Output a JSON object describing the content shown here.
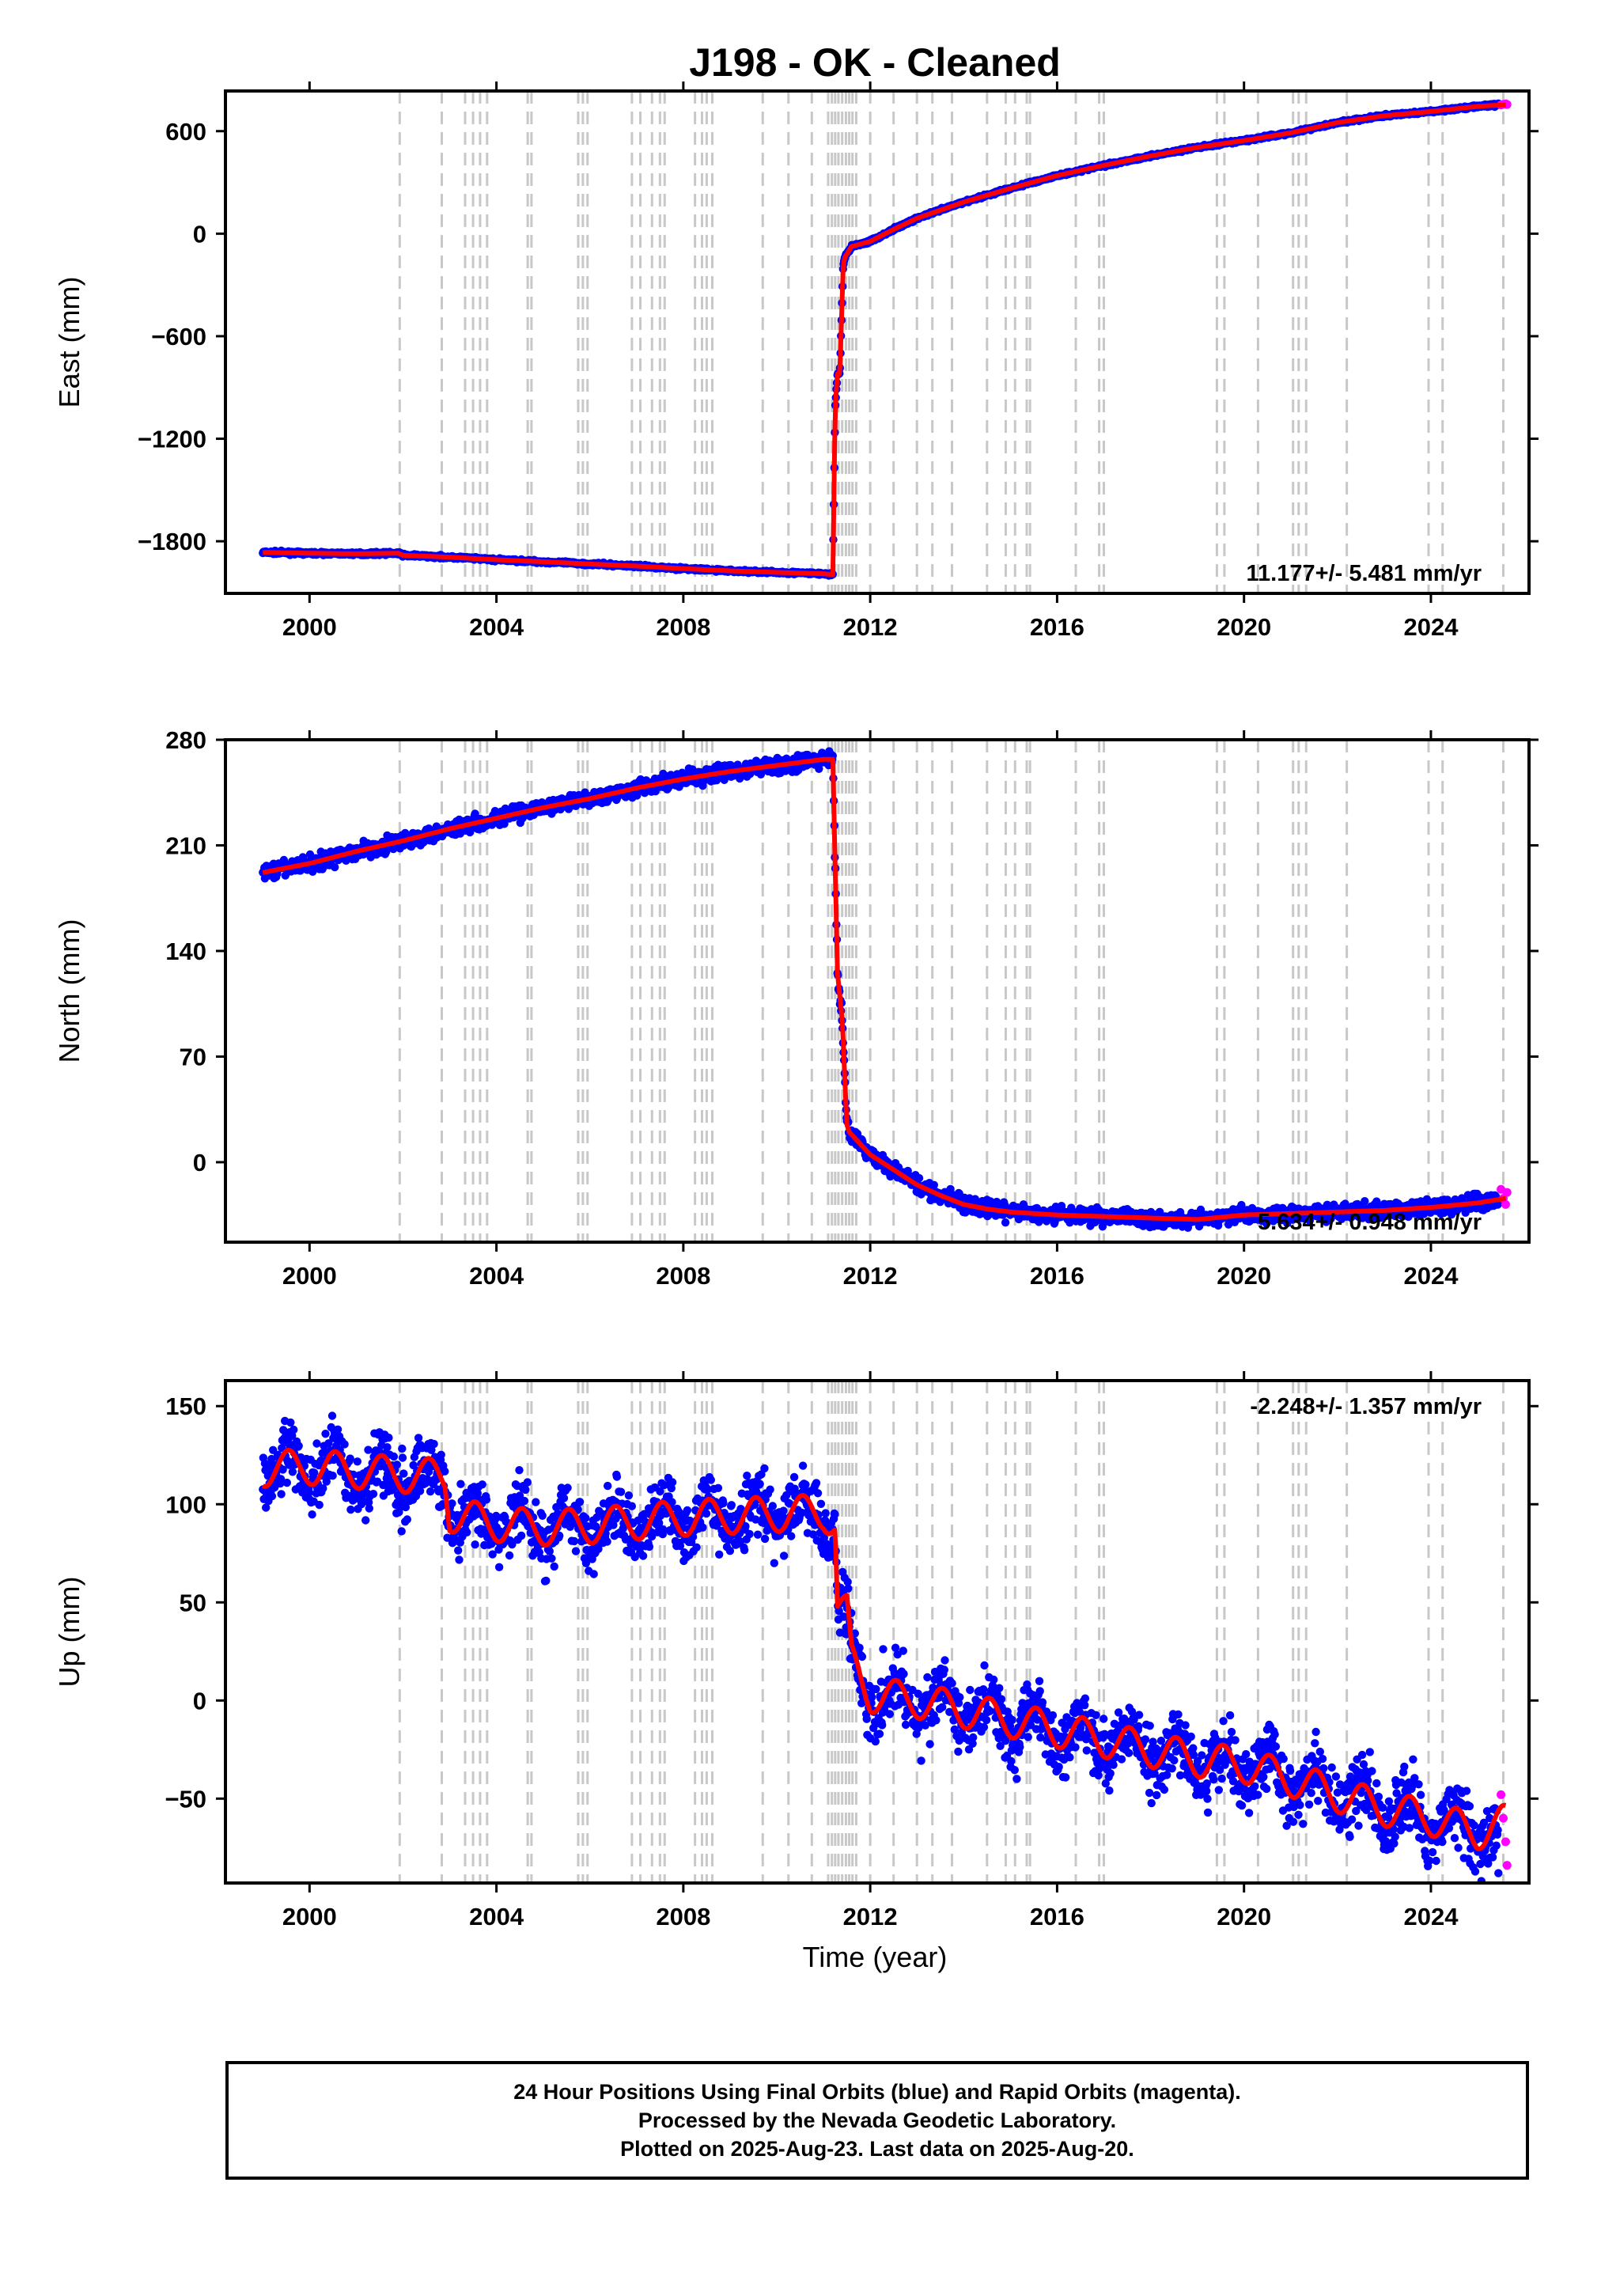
{
  "title": "J198  - OK - Cleaned",
  "xlabel": "Time (year)",
  "footer": {
    "line1": "24 Hour Positions Using Final Orbits (blue) and Rapid Orbits (magenta).",
    "line2": "Processed by the Nevada Geodetic Laboratory.",
    "line3": "Plotted on 2025-Aug-23. Last data on 2025-Aug-20."
  },
  "colors": {
    "final_orbits": "#0000ff",
    "rapid_orbits": "#ff00ff",
    "model": "#ff0000",
    "event_lines": "#c8c8c8",
    "frame": "#000000"
  },
  "chart_data": [
    {
      "type": "scatter",
      "id": "east",
      "title": "J198  - OK - Cleaned",
      "ylabel": "East (mm)",
      "xlim": [
        1998.2,
        2026.1
      ],
      "ylim": [
        -2105,
        835
      ],
      "xticks": [
        2000,
        2004,
        2008,
        2012,
        2016,
        2020,
        2024
      ],
      "yticks": [
        -1800,
        -1200,
        -600,
        0,
        600
      ],
      "ytick_labels": [
        "−1800",
        "−1200",
        "−600",
        "0",
        "600"
      ],
      "rate_text": "11.177+/- 5.481 mm/yr",
      "rate_position": "bottom-right",
      "scatter_spread": 8,
      "series": [
        {
          "name": "Final Orbits (blue)",
          "x": [
            1999.0,
            2000.0,
            2001.0,
            2001.9,
            2002.0,
            2003.0,
            2004.0,
            2005.0,
            2006.0,
            2007.0,
            2008.0,
            2009.0,
            2010.0,
            2011.0,
            2011.2,
            2011.25,
            2011.3,
            2011.35,
            2011.42,
            2011.45,
            2011.5,
            2011.6,
            2012.0,
            2012.5,
            2013.0,
            2014.0,
            2015.0,
            2016.0,
            2017.0,
            2018.0,
            2019.0,
            2020.0,
            2021.0,
            2022.0,
            2023.0,
            2024.0,
            2025.0,
            2025.45
          ],
          "y": [
            -1865,
            -1870,
            -1873,
            -1870,
            -1882,
            -1893,
            -1908,
            -1920,
            -1933,
            -1945,
            -1960,
            -1973,
            -1982,
            -1990,
            -1995,
            -1020,
            -820,
            -820,
            -200,
            -140,
            -120,
            -75,
            -45,
            25,
            90,
            185,
            265,
            340,
            400,
            455,
            505,
            545,
            590,
            650,
            690,
            715,
            745,
            755
          ]
        },
        {
          "name": "Rapid Orbits (magenta)",
          "x": [
            2025.5,
            2025.55,
            2025.6,
            2025.63
          ],
          "y": [
            753,
            757,
            760,
            756
          ]
        }
      ],
      "model": {
        "x": [
          1999.0,
          2000.0,
          2001.0,
          2001.9,
          2002.0,
          2003.0,
          2004.0,
          2005.0,
          2006.0,
          2007.0,
          2008.0,
          2009.0,
          2010.0,
          2011.0,
          2011.2,
          2011.25,
          2011.3,
          2011.35,
          2011.42,
          2011.45,
          2011.5,
          2011.6,
          2012.0,
          2012.5,
          2013.0,
          2014.0,
          2015.0,
          2016.0,
          2017.0,
          2018.0,
          2019.0,
          2020.0,
          2021.0,
          2022.0,
          2023.0,
          2024.0,
          2025.0,
          2025.6
        ],
        "y": [
          -1865,
          -1870,
          -1873,
          -1870,
          -1882,
          -1893,
          -1908,
          -1920,
          -1933,
          -1945,
          -1960,
          -1973,
          -1982,
          -1990,
          -1995,
          -1020,
          -820,
          -820,
          -200,
          -140,
          -120,
          -75,
          -45,
          25,
          90,
          185,
          265,
          340,
          400,
          455,
          505,
          545,
          590,
          650,
          690,
          715,
          745,
          755
        ]
      }
    },
    {
      "type": "scatter",
      "id": "north",
      "ylabel": "North (mm)",
      "xlim": [
        1998.2,
        2026.1
      ],
      "ylim": [
        -53,
        280
      ],
      "xticks": [
        2000,
        2004,
        2008,
        2012,
        2016,
        2020,
        2024
      ],
      "yticks": [
        0,
        70,
        140,
        210,
        280
      ],
      "ytick_labels": [
        "0",
        "70",
        "140",
        "210",
        "280"
      ],
      "rate_text": "5.634+/- 0.948 mm/yr",
      "rate_position": "bottom-right",
      "scatter_spread": 5,
      "series": [
        {
          "name": "Final Orbits (blue)",
          "x": [
            1999.0,
            2000.0,
            2001.0,
            2002.0,
            2003.0,
            2004.0,
            2005.0,
            2006.0,
            2007.0,
            2008.0,
            2009.0,
            2010.0,
            2011.0,
            2011.2,
            2011.3,
            2011.35,
            2011.4,
            2011.45,
            2011.5,
            2011.55,
            2012.0,
            2012.5,
            2013.0,
            2013.5,
            2014.0,
            2014.5,
            2015.0,
            2016.0,
            2017.0,
            2018.0,
            2019.0,
            2020.0,
            2021.0,
            2022.0,
            2023.0,
            2024.0,
            2025.0,
            2025.45
          ],
          "y": [
            192,
            198,
            206,
            213,
            221,
            228,
            235,
            241,
            248,
            254,
            259,
            263,
            267,
            267,
            125,
            110,
            95,
            60,
            25,
            20,
            5,
            -5,
            -15,
            -22,
            -28,
            -31,
            -33,
            -35,
            -36,
            -37,
            -38,
            -35,
            -34,
            -33,
            -32,
            -30,
            -27,
            -25
          ]
        },
        {
          "name": "Rapid Orbits (magenta)",
          "x": [
            2025.5,
            2025.55,
            2025.6,
            2025.63
          ],
          "y": [
            -18,
            -24,
            -28,
            -20
          ]
        }
      ],
      "model": {
        "x": [
          1999.0,
          2000.0,
          2001.0,
          2002.0,
          2003.0,
          2004.0,
          2005.0,
          2006.0,
          2007.0,
          2008.0,
          2009.0,
          2010.0,
          2011.0,
          2011.2,
          2011.3,
          2011.35,
          2011.4,
          2011.45,
          2011.5,
          2011.55,
          2012.0,
          2012.5,
          2013.0,
          2013.5,
          2014.0,
          2014.5,
          2015.0,
          2016.0,
          2017.0,
          2018.0,
          2019.0,
          2020.0,
          2021.0,
          2022.0,
          2023.0,
          2024.0,
          2025.0,
          2025.6
        ],
        "y": [
          192,
          198,
          206,
          213,
          221,
          228,
          235,
          241,
          248,
          254,
          259,
          263,
          267,
          267,
          125,
          110,
          95,
          60,
          25,
          20,
          5,
          -5,
          -15,
          -22,
          -28,
          -31,
          -33,
          -35,
          -36,
          -37,
          -38,
          -35,
          -34,
          -33,
          -32,
          -30,
          -27,
          -24
        ]
      }
    },
    {
      "type": "scatter",
      "id": "up",
      "ylabel": "Up (mm)",
      "xlim": [
        1998.2,
        2026.1
      ],
      "ylim": [
        -93,
        163
      ],
      "xticks": [
        2000,
        2004,
        2008,
        2012,
        2016,
        2020,
        2024
      ],
      "yticks": [
        -50,
        0,
        50,
        100,
        150
      ],
      "ytick_labels": [
        "−50",
        "0",
        "50",
        "100",
        "150"
      ],
      "rate_text": "-2.248+/- 1.357 mm/yr",
      "rate_position": "top-right",
      "scatter_spread": 16,
      "series": [
        {
          "name": "Final Orbits (blue)",
          "x": [
            1999.0,
            2000.0,
            2001.0,
            2002.0,
            2002.9,
            2003.0,
            2004.0,
            2005.0,
            2006.0,
            2007.0,
            2008.0,
            2009.0,
            2010.0,
            2011.0,
            2011.25,
            2011.3,
            2011.5,
            2011.6,
            2012.0,
            2013.0,
            2014.0,
            2015.0,
            2016.0,
            2017.0,
            2018.0,
            2019.0,
            2020.0,
            2021.0,
            2022.0,
            2023.0,
            2024.0,
            2025.0,
            2025.45
          ],
          "y": [
            118,
            119,
            117,
            115,
            114,
            95,
            90,
            88,
            89,
            91,
            93,
            94,
            95,
            96,
            90,
            48,
            45,
            20,
            3,
            0,
            -5,
            -10,
            -15,
            -20,
            -25,
            -30,
            -33,
            -40,
            -48,
            -55,
            -60,
            -67,
            -72
          ]
        },
        {
          "name": "Rapid Orbits (magenta)",
          "x": [
            2025.5,
            2025.55,
            2025.6,
            2025.63
          ],
          "y": [
            -48,
            -60,
            -72,
            -84
          ]
        }
      ],
      "model": {
        "x": [
          1999.0,
          2000.0,
          2001.0,
          2002.0,
          2002.9,
          2003.0,
          2004.0,
          2005.0,
          2006.0,
          2007.0,
          2008.0,
          2009.0,
          2010.0,
          2011.0,
          2011.25,
          2011.3,
          2011.5,
          2011.6,
          2012.0,
          2013.0,
          2014.0,
          2015.0,
          2016.0,
          2017.0,
          2018.0,
          2019.0,
          2020.0,
          2021.0,
          2022.0,
          2023.0,
          2024.0,
          2025.0,
          2025.6
        ],
        "y": [
          118,
          119,
          117,
          115,
          114,
          95,
          90,
          88,
          89,
          91,
          93,
          94,
          95,
          96,
          90,
          48,
          45,
          20,
          3,
          0,
          -5,
          -10,
          -15,
          -20,
          -25,
          -30,
          -33,
          -40,
          -48,
          -55,
          -60,
          -67,
          -62
        ],
        "seasonal_amplitude": 9
      }
    }
  ],
  "event_years": [
    2001.93,
    2002.83,
    2003.33,
    2003.5,
    2003.65,
    2003.8,
    2004.67,
    2004.75,
    2005.75,
    2005.85,
    2005.95,
    2006.9,
    2007.08,
    2007.33,
    2007.5,
    2007.6,
    2008.25,
    2008.4,
    2008.5,
    2008.62,
    2009.7,
    2010.25,
    2010.75,
    2011.1,
    2011.18,
    2011.25,
    2011.32,
    2011.4,
    2011.48,
    2011.55,
    2011.62,
    2011.7,
    2012.0,
    2012.5,
    2013.0,
    2013.33,
    2013.75,
    2014.5,
    2014.9,
    2015.1,
    2015.35,
    2015.42,
    2016.4,
    2016.9,
    2017.0,
    2019.42,
    2019.58,
    2020.3,
    2021.05,
    2021.17,
    2021.33,
    2022.2,
    2023.95,
    2024.25,
    2025.55
  ]
}
